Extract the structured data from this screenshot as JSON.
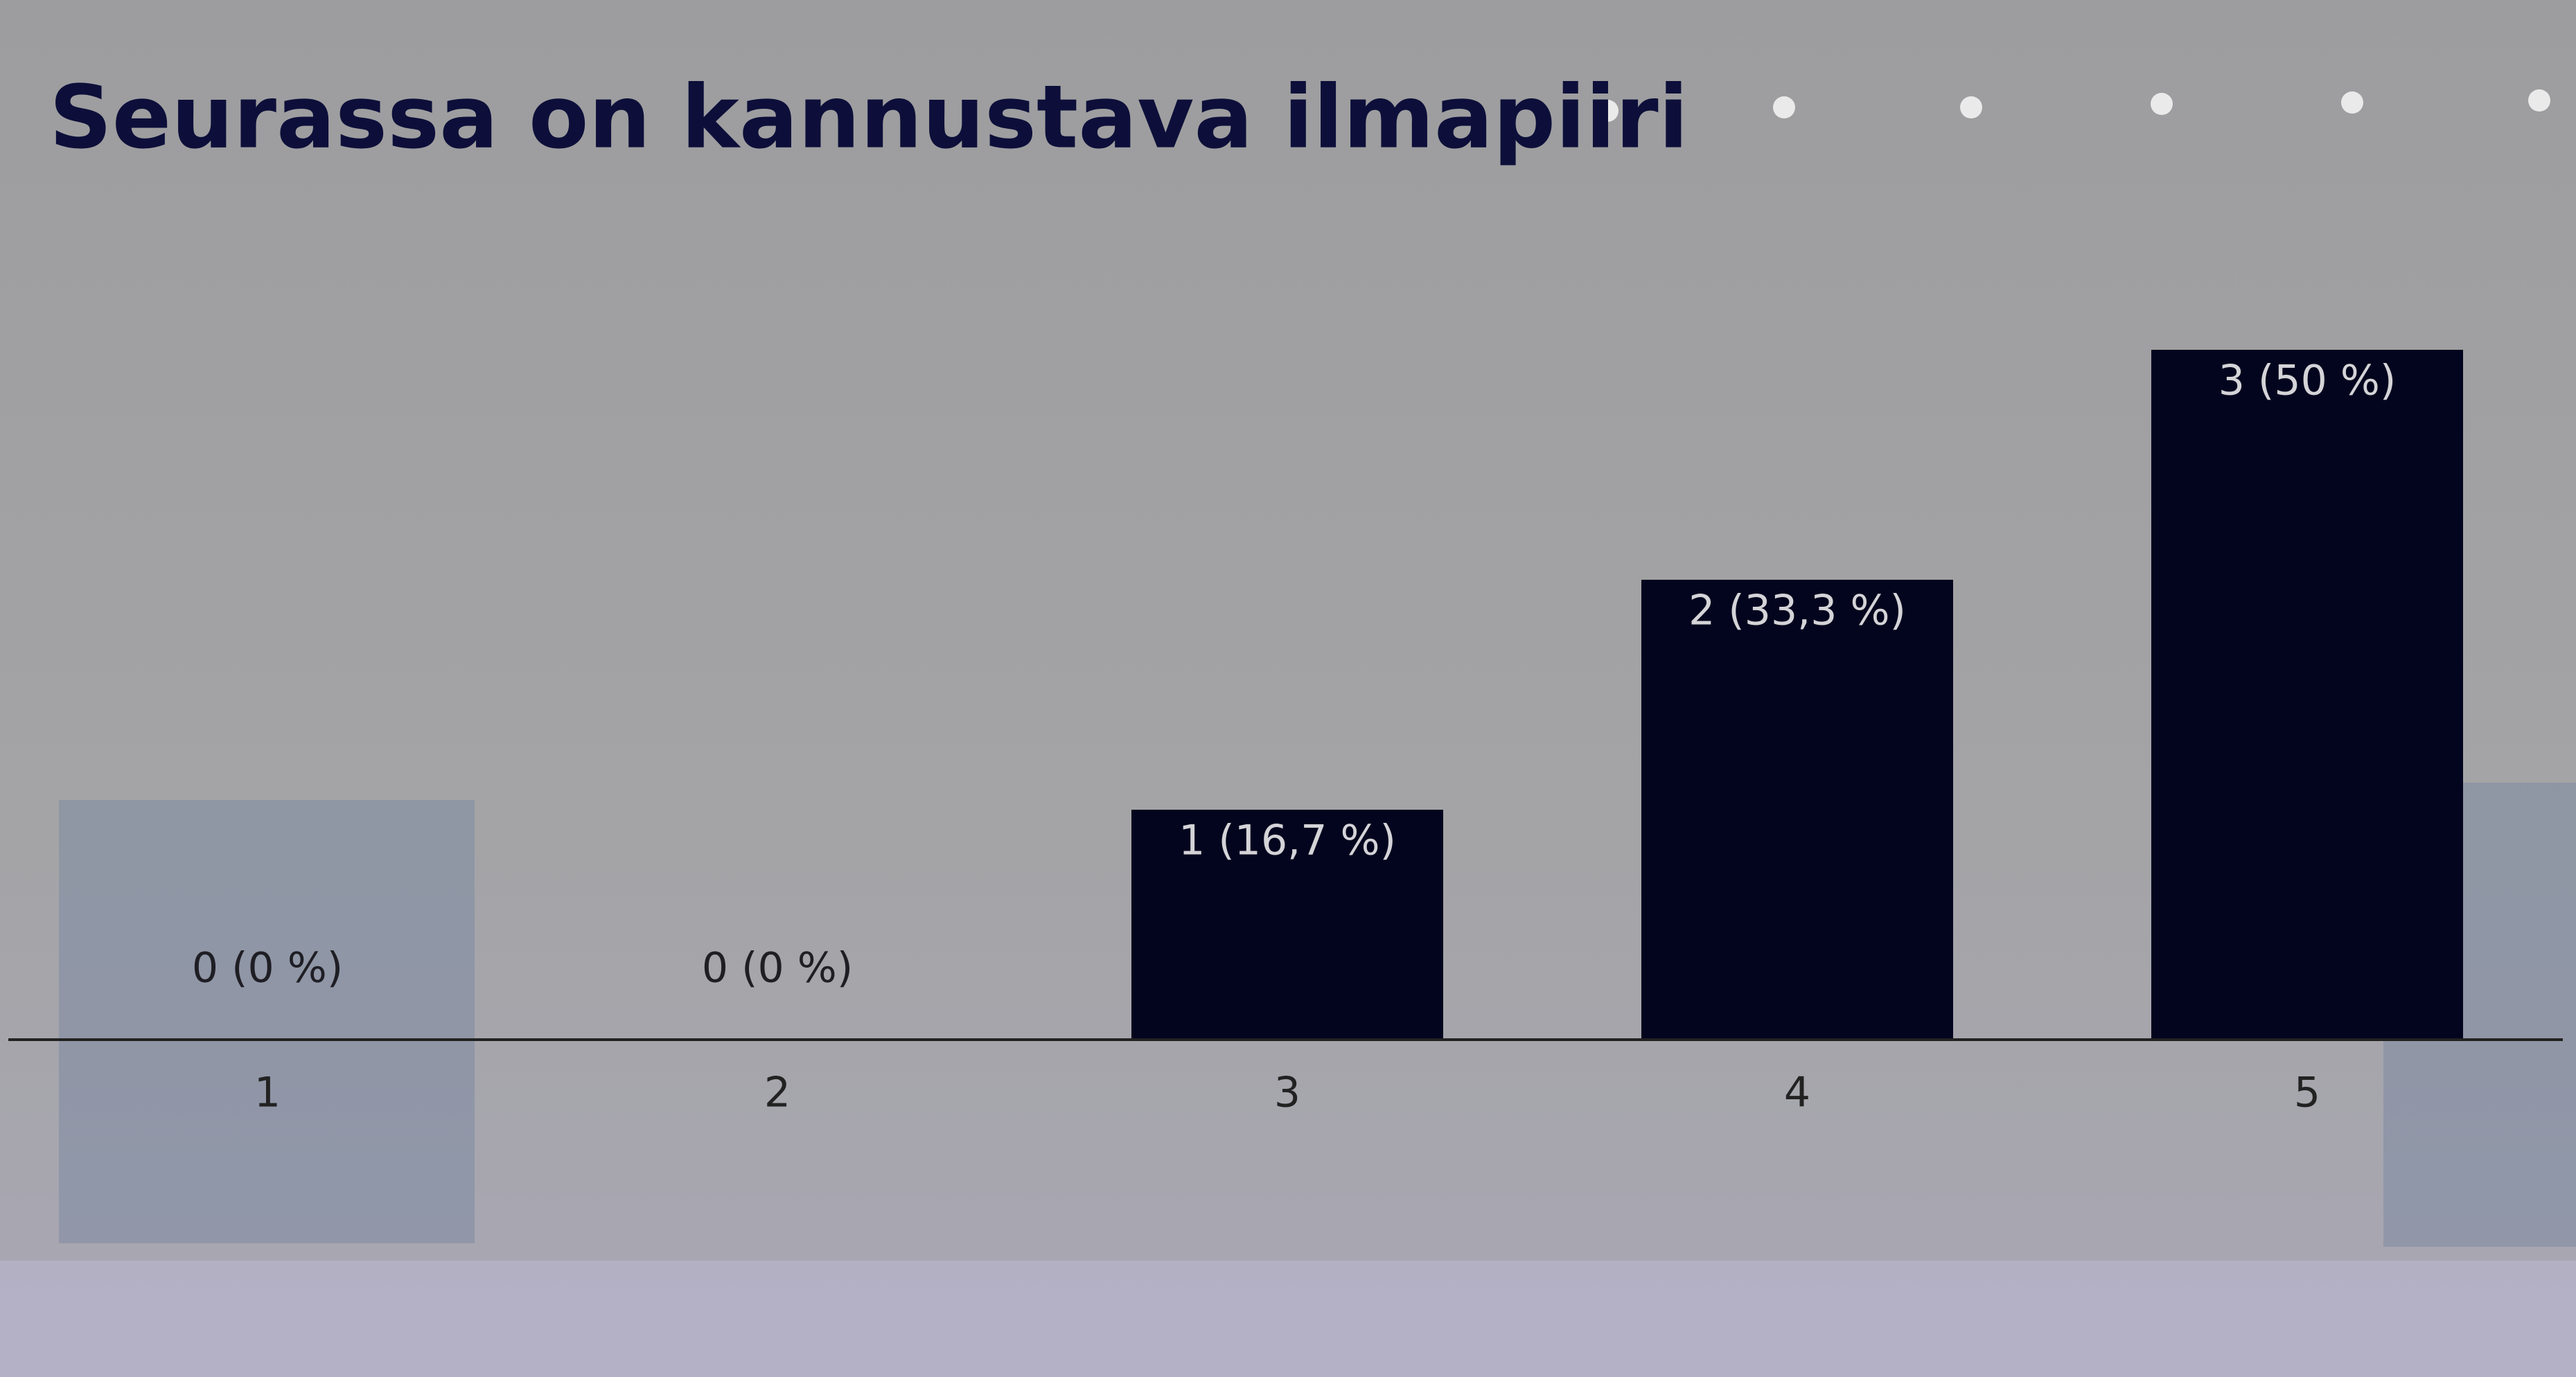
{
  "chart_data": {
    "type": "bar",
    "title": "Seurassa on kannustava ilmapiiri",
    "categories": [
      "1",
      "2",
      "3",
      "4",
      "5"
    ],
    "values": [
      0,
      0,
      1,
      2,
      3
    ],
    "value_labels": [
      "0 (0 %)",
      "0 (0 %)",
      "1 (16,7 %)",
      "2 (33,3 %)",
      "3 (50 %)"
    ],
    "color": "#03051e",
    "ylim": [
      0,
      3
    ]
  }
}
